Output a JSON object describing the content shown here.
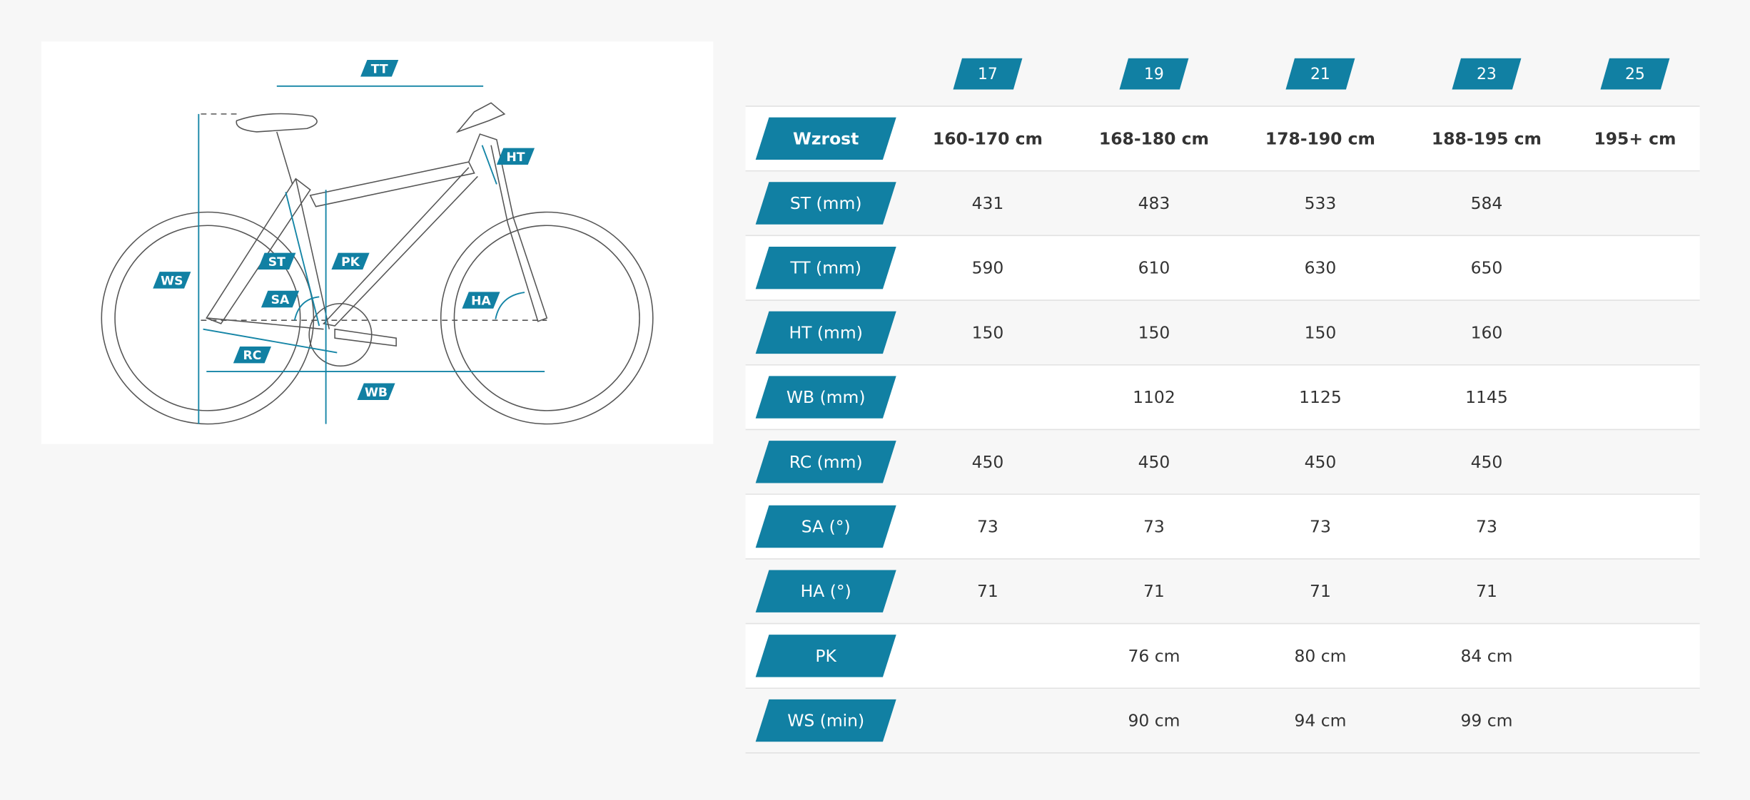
{
  "diagram": {
    "labels": [
      "TT",
      "HT",
      "ST",
      "PK",
      "WS",
      "SA",
      "HA",
      "RC",
      "WB"
    ]
  },
  "table": {
    "sizes": [
      "17",
      "19",
      "21",
      "23",
      "25"
    ],
    "rows": [
      {
        "label": "Wzrost",
        "cells": [
          "160-170 cm",
          "168-180 cm",
          "178-190 cm",
          "188-195 cm",
          "195+ cm"
        ]
      },
      {
        "label": "ST (mm)",
        "cells": [
          "431",
          "483",
          "533",
          "584",
          null
        ]
      },
      {
        "label": "TT (mm)",
        "cells": [
          "590",
          "610",
          "630",
          "650",
          null
        ]
      },
      {
        "label": "HT (mm)",
        "cells": [
          "150",
          "150",
          "150",
          "160",
          null
        ]
      },
      {
        "label": "WB (mm)",
        "cells": [
          null,
          "1102",
          "1125",
          "1145",
          null
        ]
      },
      {
        "label": "RC (mm)",
        "cells": [
          "450",
          "450",
          "450",
          "450",
          null
        ]
      },
      {
        "label": "SA (°)",
        "cells": [
          "73",
          "73",
          "73",
          "73",
          null
        ]
      },
      {
        "label": "HA (°)",
        "cells": [
          "71",
          "71",
          "71",
          "71",
          null
        ]
      },
      {
        "label": "PK",
        "cells": [
          null,
          "76 cm",
          "80 cm",
          "84 cm",
          null
        ]
      },
      {
        "label": "WS (min)",
        "cells": [
          null,
          "90 cm",
          "94 cm",
          "99 cm",
          null
        ]
      }
    ]
  }
}
